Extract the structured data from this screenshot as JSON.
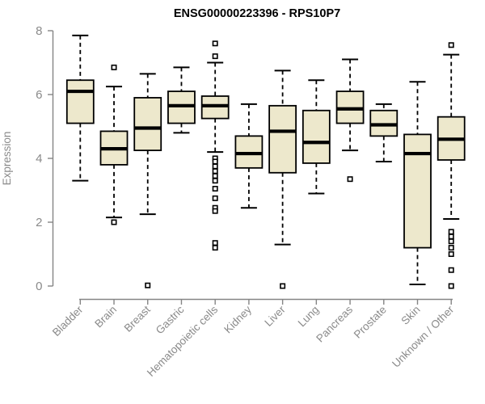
{
  "chart_data": {
    "type": "boxplot",
    "title": "ENSG00000223396 - RPS10P7",
    "xlabel": "",
    "ylabel": "Expression",
    "ylim": [
      0,
      8
    ],
    "yticks": [
      0,
      2,
      4,
      6,
      8
    ],
    "grid": false,
    "legend": "none",
    "categories": [
      "Bladder",
      "Brain",
      "Breast",
      "Gastric",
      "Hematopoietic cells",
      "Kidney",
      "Liver",
      "Lung",
      "Pancreas",
      "Prostate",
      "Skin",
      "Unknown / Other"
    ],
    "boxes": [
      {
        "category": "Bladder",
        "whisker_low": 3.3,
        "q1": 5.1,
        "median": 6.1,
        "q3": 6.45,
        "whisker_high": 7.85,
        "outliers": []
      },
      {
        "category": "Brain",
        "whisker_low": 2.15,
        "q1": 3.8,
        "median": 4.3,
        "q3": 4.85,
        "whisker_high": 6.25,
        "outliers": [
          6.85,
          2.0
        ]
      },
      {
        "category": "Breast",
        "whisker_low": 2.25,
        "q1": 4.25,
        "median": 4.95,
        "q3": 5.9,
        "whisker_high": 6.65,
        "outliers": [
          0.02
        ]
      },
      {
        "category": "Gastric",
        "whisker_low": 4.8,
        "q1": 5.1,
        "median": 5.65,
        "q3": 6.1,
        "whisker_high": 6.85,
        "outliers": []
      },
      {
        "category": "Hematopoietic cells",
        "whisker_low": 4.2,
        "q1": 5.25,
        "median": 5.65,
        "q3": 5.95,
        "whisker_high": 7.0,
        "outliers": [
          7.6,
          7.2,
          4.0,
          3.9,
          3.75,
          3.6,
          3.45,
          3.3,
          3.05,
          2.75,
          2.45,
          2.35,
          1.35,
          1.2
        ]
      },
      {
        "category": "Kidney",
        "whisker_low": 2.45,
        "q1": 3.7,
        "median": 4.15,
        "q3": 4.7,
        "whisker_high": 5.7,
        "outliers": []
      },
      {
        "category": "Liver",
        "whisker_low": 1.3,
        "q1": 3.55,
        "median": 4.85,
        "q3": 5.65,
        "whisker_high": 6.75,
        "outliers": [
          0.0
        ]
      },
      {
        "category": "Lung",
        "whisker_low": 2.9,
        "q1": 3.85,
        "median": 4.5,
        "q3": 5.5,
        "whisker_high": 6.45,
        "outliers": []
      },
      {
        "category": "Pancreas",
        "whisker_low": 4.25,
        "q1": 5.1,
        "median": 5.55,
        "q3": 6.1,
        "whisker_high": 7.1,
        "outliers": [
          3.35
        ]
      },
      {
        "category": "Prostate",
        "whisker_low": 3.9,
        "q1": 4.7,
        "median": 5.05,
        "q3": 5.5,
        "whisker_high": 5.7,
        "outliers": []
      },
      {
        "category": "Skin",
        "whisker_low": 0.05,
        "q1": 1.2,
        "median": 4.15,
        "q3": 4.75,
        "whisker_high": 6.4,
        "outliers": []
      },
      {
        "category": "Unknown / Other",
        "whisker_low": 2.1,
        "q1": 3.95,
        "median": 4.6,
        "q3": 5.3,
        "whisker_high": 7.25,
        "outliers": [
          7.55,
          1.7,
          1.55,
          1.4,
          1.2,
          1.0,
          0.5,
          0.0
        ]
      }
    ],
    "colors": {
      "box_fill": "#ede8cc",
      "box_border": "#000000",
      "median": "#000000",
      "whisker": "#000000",
      "outlier": "#000000",
      "axis": "#858585",
      "tick_label": "#8a8a8a",
      "title": "#000000",
      "background": "#ffffff"
    }
  }
}
